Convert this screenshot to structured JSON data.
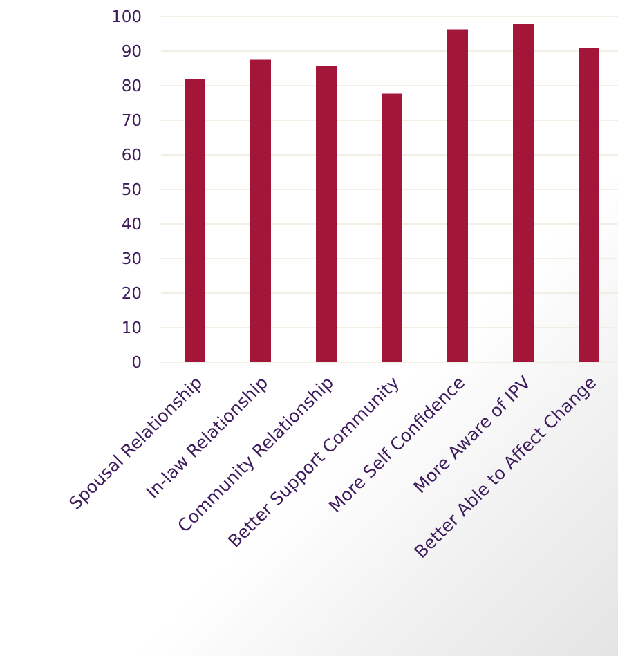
{
  "chart_data": {
    "type": "bar",
    "title": "",
    "xlabel": "",
    "ylabel": "",
    "categories": [
      "Spousal Relationship",
      "In-law Relationship",
      "Community Relationship",
      "Better Support Community",
      "More Self Confidence",
      "More Aware of IPV",
      "Better Able to Affect Change"
    ],
    "values": [
      82,
      87.5,
      85.7,
      77.7,
      96.3,
      98,
      91
    ],
    "ylim": [
      0,
      100
    ],
    "yticks": [
      0,
      10,
      20,
      30,
      40,
      50,
      60,
      70,
      80,
      90,
      100
    ],
    "grid": true,
    "legend": "none",
    "colors": {
      "bar": "#a31639",
      "text": "#3d1a5c",
      "grid": "#ecebdc"
    }
  }
}
